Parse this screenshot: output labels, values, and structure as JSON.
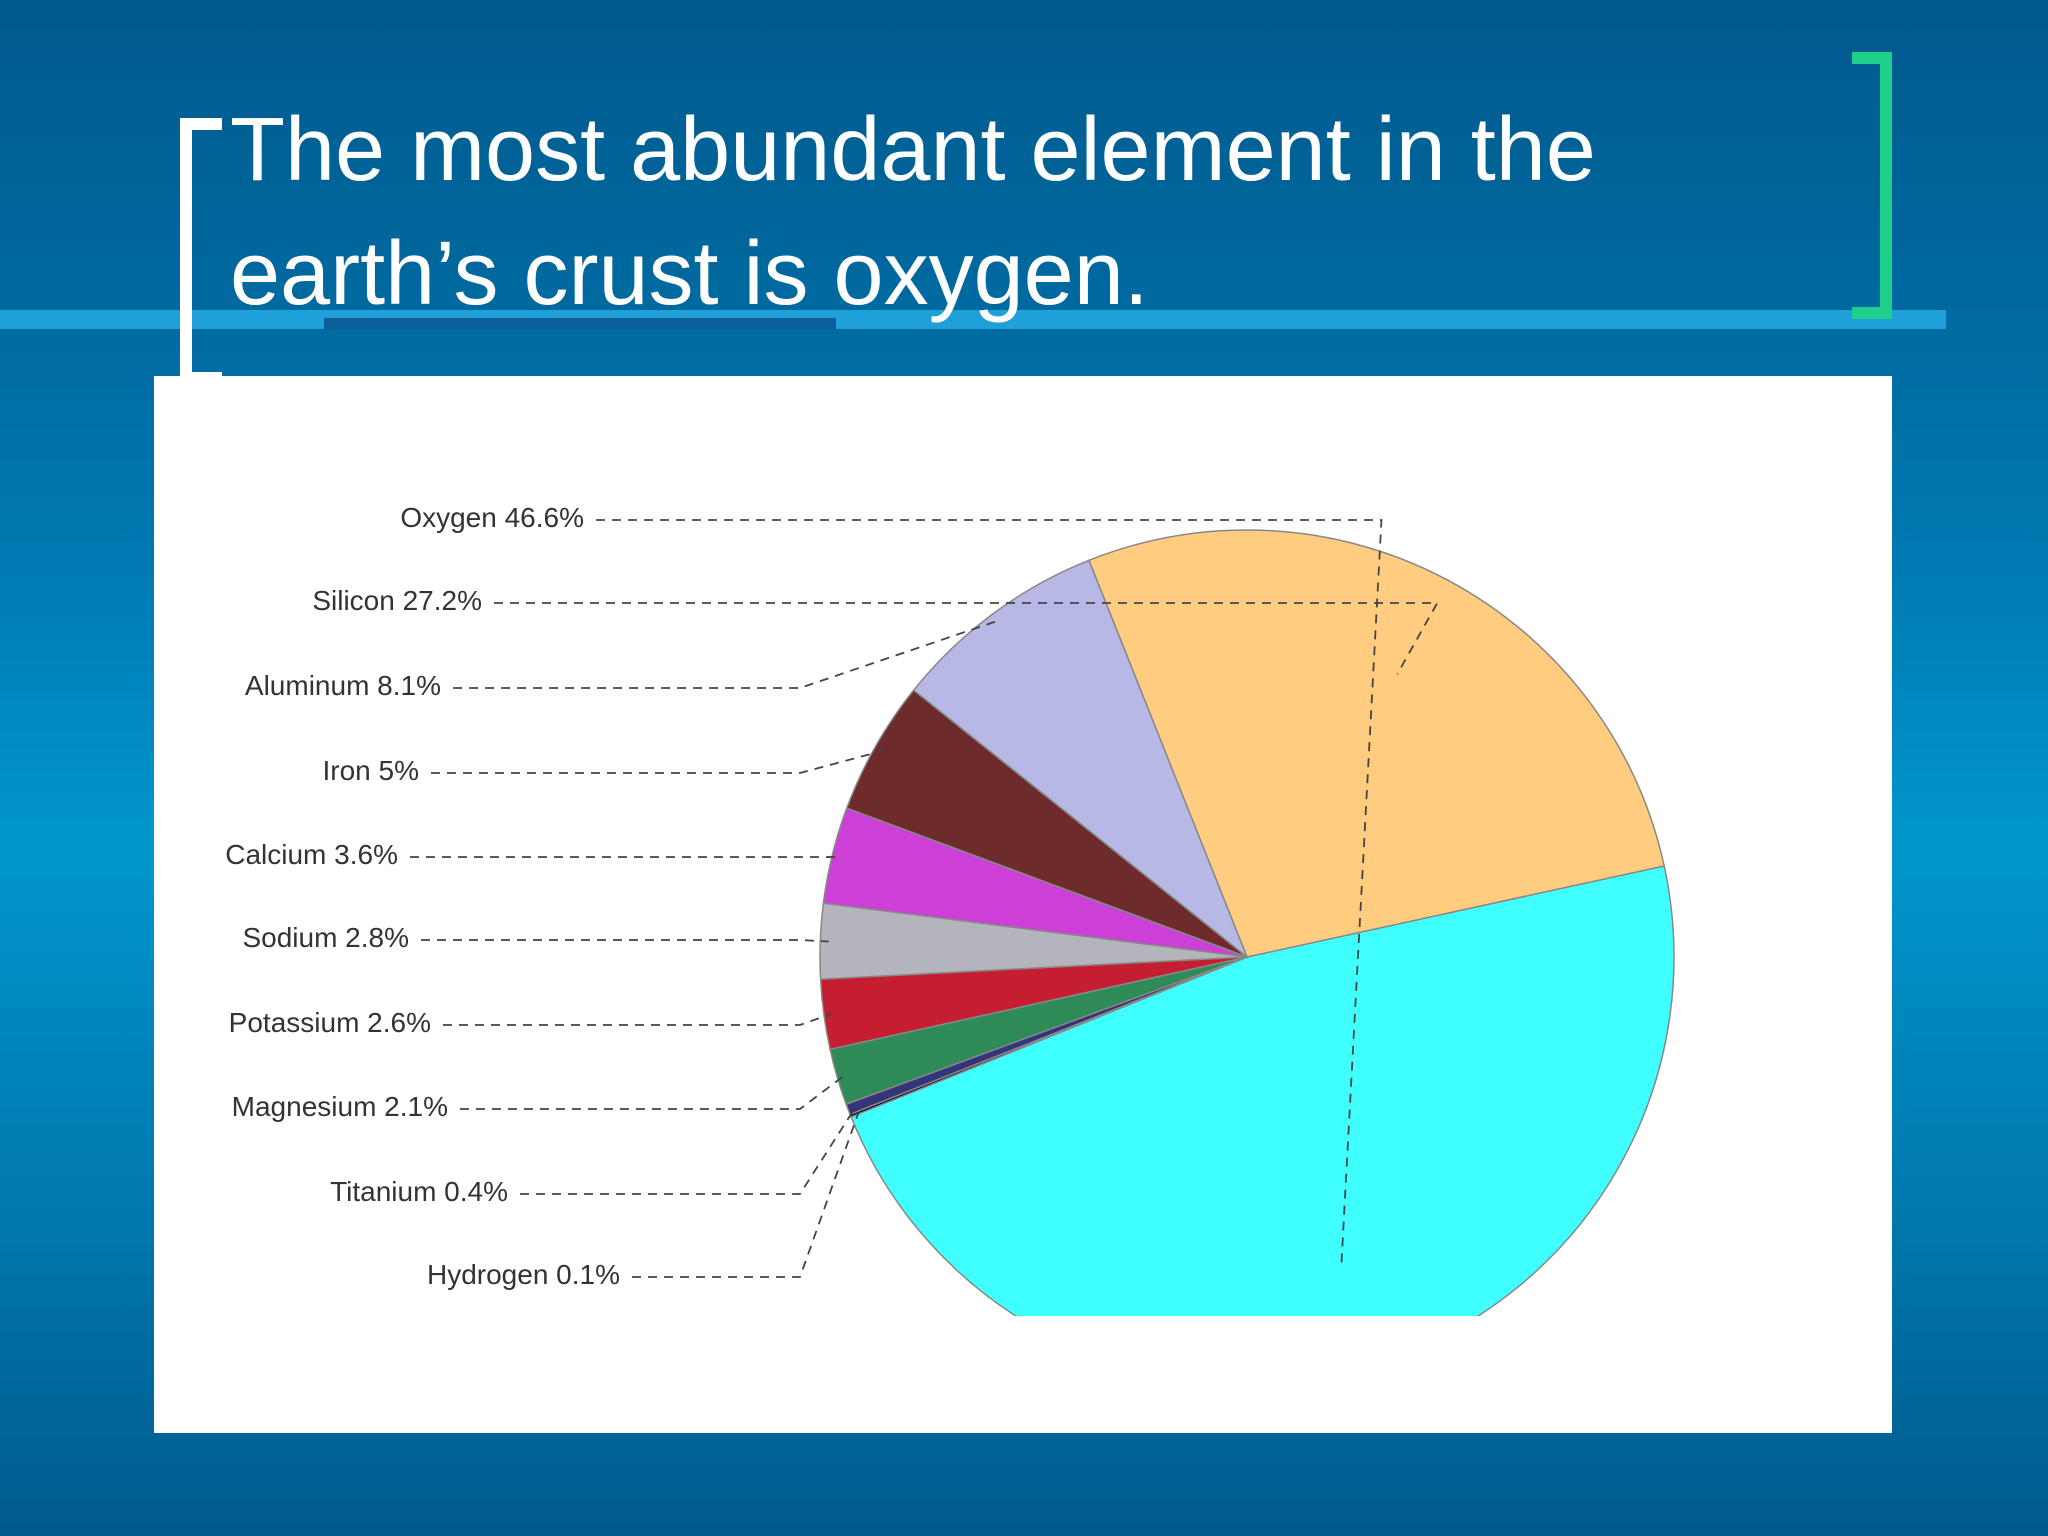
{
  "chart_data": {
    "type": "pie",
    "title": "The most abundant element in the earth’s crust is oxygen.",
    "categories": [
      "Oxygen",
      "Silicon",
      "Aluminum",
      "Iron",
      "Calcium",
      "Sodium",
      "Potassium",
      "Magnesium",
      "Titanium",
      "Hydrogen"
    ],
    "values": [
      46.6,
      27.2,
      8.1,
      5,
      3.6,
      2.8,
      2.6,
      2.1,
      0.4,
      0.1
    ],
    "value_labels": [
      "46.6%",
      "27.2%",
      "8.1%",
      "5%",
      "3.6%",
      "2.8%",
      "2.6%",
      "2.1%",
      "0.4%",
      "0.1%"
    ],
    "colors": [
      "#40ffff",
      "#ffcc80",
      "#b8b8e6",
      "#6e2b2b",
      "#cc40d8",
      "#b4b4bc",
      "#c41e30",
      "#2e8b57",
      "#34347a",
      "#000033"
    ]
  }
}
